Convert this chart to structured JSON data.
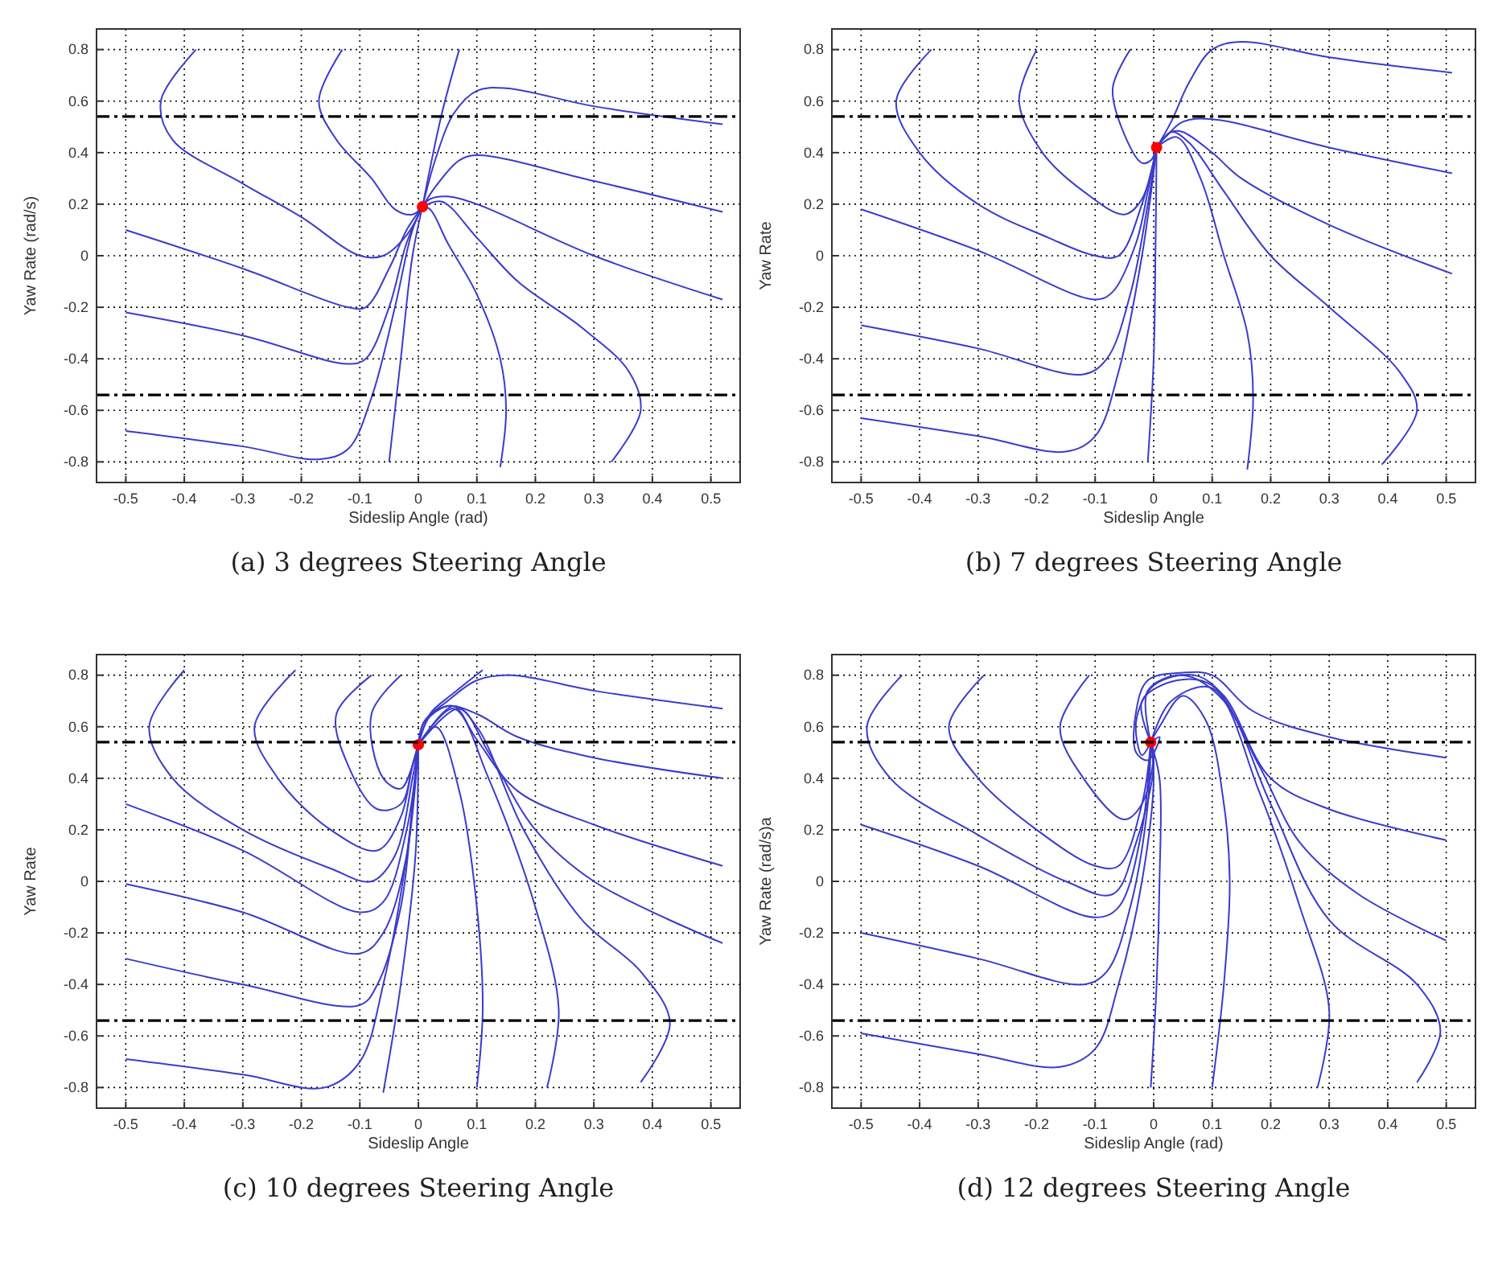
{
  "chart_data": [
    {
      "type": "line",
      "title": "(a) 3 degrees Steering Angle",
      "xlabel": "Sideslip Angle (rad)",
      "ylabel": "Yaw Rate (rad/s)",
      "xlim": [
        -0.55,
        0.55
      ],
      "ylim": [
        -0.88,
        0.88
      ],
      "xticks": [
        -0.5,
        -0.4,
        -0.3,
        -0.2,
        -0.1,
        0,
        0.1,
        0.2,
        0.3,
        0.4,
        0.5
      ],
      "yticks": [
        -0.8,
        -0.6,
        -0.4,
        -0.2,
        0,
        0.2,
        0.4,
        0.6,
        0.8
      ],
      "grid": true,
      "line_style": "solid",
      "ref_lines": [
        {
          "axis": "y",
          "value": 0.54,
          "color": "#000000",
          "line_style": "dashdot"
        },
        {
          "axis": "y",
          "value": -0.54,
          "color": "#000000",
          "line_style": "dashdot"
        }
      ],
      "series": [
        {
          "type": "line",
          "color": "#3b3bcc",
          "x": [
            -0.38,
            -0.44,
            -0.42,
            -0.3,
            -0.2,
            -0.1,
            -0.06,
            -0.02,
            0.007
          ],
          "values": [
            0.8,
            0.6,
            0.45,
            0.28,
            0.15,
            0.0,
            0.0,
            0.08,
            0.19
          ]
        },
        {
          "type": "line",
          "color": "#3b3bcc",
          "x": [
            -0.13,
            -0.17,
            -0.14,
            -0.08,
            -0.04,
            -0.01,
            0.007
          ],
          "values": [
            0.8,
            0.6,
            0.45,
            0.3,
            0.18,
            0.16,
            0.19
          ]
        },
        {
          "type": "line",
          "color": "#3b3bcc",
          "x": [
            0.07,
            0.04,
            0.007
          ],
          "values": [
            0.8,
            0.55,
            0.19
          ]
        },
        {
          "type": "line",
          "color": "#3b3bcc",
          "x": [
            0.52,
            0.3,
            0.15,
            0.1,
            0.06,
            0.03,
            0.007
          ],
          "values": [
            0.51,
            0.58,
            0.65,
            0.64,
            0.55,
            0.38,
            0.19
          ]
        },
        {
          "type": "line",
          "color": "#3b3bcc",
          "x": [
            0.52,
            0.3,
            0.1,
            0.07,
            0.03,
            0.007
          ],
          "values": [
            0.17,
            0.29,
            0.39,
            0.37,
            0.27,
            0.19
          ]
        },
        {
          "type": "line",
          "color": "#3b3bcc",
          "x": [
            0.52,
            0.3,
            0.1,
            0.05,
            0.02,
            0.007
          ],
          "values": [
            -0.17,
            0.0,
            0.2,
            0.23,
            0.22,
            0.19
          ]
        },
        {
          "type": "line",
          "color": "#3b3bcc",
          "x": [
            0.33,
            0.38,
            0.36,
            0.28,
            0.17,
            0.1,
            0.04,
            0.007
          ],
          "values": [
            -0.8,
            -0.6,
            -0.45,
            -0.28,
            -0.1,
            0.07,
            0.21,
            0.19
          ]
        },
        {
          "type": "line",
          "color": "#3b3bcc",
          "x": [
            0.14,
            0.15,
            0.14,
            0.1,
            0.05,
            0.02,
            0.007
          ],
          "values": [
            -0.82,
            -0.6,
            -0.4,
            -0.15,
            0.05,
            0.18,
            0.19
          ]
        },
        {
          "type": "line",
          "color": "#3b3bcc",
          "x": [
            -0.05,
            -0.03,
            -0.01,
            0.007
          ],
          "values": [
            -0.8,
            -0.4,
            0.0,
            0.19
          ]
        },
        {
          "type": "line",
          "color": "#3b3bcc",
          "x": [
            -0.5,
            -0.3,
            -0.17,
            -0.12,
            -0.08,
            -0.04,
            -0.01,
            0.007
          ],
          "values": [
            -0.68,
            -0.74,
            -0.79,
            -0.75,
            -0.55,
            -0.2,
            0.1,
            0.19
          ]
        },
        {
          "type": "line",
          "color": "#3b3bcc",
          "x": [
            -0.5,
            -0.3,
            -0.12,
            -0.09,
            -0.05,
            -0.02,
            0.007
          ],
          "values": [
            -0.22,
            -0.31,
            -0.42,
            -0.4,
            -0.2,
            0.05,
            0.19
          ]
        },
        {
          "type": "line",
          "color": "#3b3bcc",
          "x": [
            -0.5,
            -0.3,
            -0.12,
            -0.09,
            -0.05,
            -0.02,
            0.007
          ],
          "values": [
            0.1,
            -0.05,
            -0.2,
            -0.2,
            -0.05,
            0.1,
            0.19
          ]
        },
        {
          "type": "scatter",
          "marker": "circle",
          "color": "#ff0000",
          "x": [
            0.007
          ],
          "values": [
            0.19
          ]
        }
      ]
    },
    {
      "type": "line",
      "title": "(b) 7 degrees Steering Angle",
      "xlabel": "Sideslip Angle",
      "ylabel": "Yaw Rate",
      "xlim": [
        -0.55,
        0.55
      ],
      "ylim": [
        -0.88,
        0.88
      ],
      "xticks": [
        -0.5,
        -0.4,
        -0.3,
        -0.2,
        -0.1,
        0,
        0.1,
        0.2,
        0.3,
        0.4,
        0.5
      ],
      "yticks": [
        -0.8,
        -0.6,
        -0.4,
        -0.2,
        0,
        0.2,
        0.4,
        0.6,
        0.8
      ],
      "grid": true,
      "line_style": "solid",
      "ref_lines": [
        {
          "axis": "y",
          "value": 0.54,
          "color": "#000000",
          "line_style": "dashdot"
        },
        {
          "axis": "y",
          "value": -0.54,
          "color": "#000000",
          "line_style": "dashdot"
        }
      ],
      "series": [
        {
          "type": "line",
          "color": "#3b3bcc",
          "x": [
            -0.38,
            -0.44,
            -0.4,
            -0.3,
            -0.18,
            -0.1,
            -0.06,
            -0.02,
            0.005
          ],
          "values": [
            0.8,
            0.6,
            0.4,
            0.2,
            0.07,
            0.0,
            0.0,
            0.2,
            0.42
          ]
        },
        {
          "type": "line",
          "color": "#3b3bcc",
          "x": [
            -0.2,
            -0.23,
            -0.19,
            -0.12,
            -0.05,
            -0.02,
            0.005
          ],
          "values": [
            0.8,
            0.6,
            0.4,
            0.25,
            0.16,
            0.22,
            0.42
          ]
        },
        {
          "type": "line",
          "color": "#3b3bcc",
          "x": [
            -0.04,
            -0.07,
            -0.05,
            -0.02,
            -0.005,
            0.005
          ],
          "values": [
            0.8,
            0.65,
            0.47,
            0.36,
            0.37,
            0.42
          ]
        },
        {
          "type": "line",
          "color": "#3b3bcc",
          "x": [
            0.51,
            0.3,
            0.15,
            0.1,
            0.06,
            0.03,
            0.005
          ],
          "values": [
            0.71,
            0.77,
            0.83,
            0.8,
            0.67,
            0.52,
            0.42
          ]
        },
        {
          "type": "line",
          "color": "#3b3bcc",
          "x": [
            0.51,
            0.3,
            0.1,
            0.05,
            0.02,
            0.005
          ],
          "values": [
            0.32,
            0.42,
            0.53,
            0.52,
            0.46,
            0.42
          ]
        },
        {
          "type": "line",
          "color": "#3b3bcc",
          "x": [
            0.51,
            0.3,
            0.15,
            0.1,
            0.05,
            0.03,
            0.005
          ],
          "values": [
            -0.07,
            0.12,
            0.3,
            0.4,
            0.48,
            0.48,
            0.42
          ]
        },
        {
          "type": "line",
          "color": "#3b3bcc",
          "x": [
            0.39,
            0.45,
            0.42,
            0.3,
            0.2,
            0.12,
            0.06,
            0.03,
            0.005
          ],
          "values": [
            -0.81,
            -0.6,
            -0.45,
            -0.2,
            0.0,
            0.25,
            0.44,
            0.48,
            0.42
          ]
        },
        {
          "type": "line",
          "color": "#3b3bcc",
          "x": [
            0.16,
            0.17,
            0.16,
            0.12,
            0.08,
            0.04,
            0.005
          ],
          "values": [
            -0.83,
            -0.55,
            -0.3,
            0.0,
            0.3,
            0.46,
            0.42
          ]
        },
        {
          "type": "line",
          "color": "#3b3bcc",
          "x": [
            -0.01,
            0.0,
            0.003,
            0.005
          ],
          "values": [
            -0.8,
            -0.4,
            0.0,
            0.42
          ]
        },
        {
          "type": "line",
          "color": "#3b3bcc",
          "x": [
            -0.5,
            -0.3,
            -0.15,
            -0.1,
            -0.06,
            -0.02,
            0.005
          ],
          "values": [
            -0.63,
            -0.7,
            -0.76,
            -0.7,
            -0.45,
            0.0,
            0.42
          ]
        },
        {
          "type": "line",
          "color": "#3b3bcc",
          "x": [
            -0.5,
            -0.3,
            -0.12,
            -0.08,
            -0.04,
            -0.01,
            0.005
          ],
          "values": [
            -0.27,
            -0.36,
            -0.46,
            -0.4,
            -0.15,
            0.2,
            0.42
          ]
        },
        {
          "type": "line",
          "color": "#3b3bcc",
          "x": [
            -0.5,
            -0.3,
            -0.1,
            -0.07,
            -0.03,
            -0.01,
            0.005
          ],
          "values": [
            0.18,
            0.02,
            -0.17,
            -0.14,
            0.05,
            0.25,
            0.42
          ]
        },
        {
          "type": "scatter",
          "marker": "circle",
          "color": "#ff0000",
          "x": [
            0.005
          ],
          "values": [
            0.42
          ]
        }
      ]
    },
    {
      "type": "line",
      "title": "(c) 10 degrees Steering Angle",
      "xlabel": "Sideslip Angle",
      "ylabel": "Yaw Rate",
      "xlim": [
        -0.55,
        0.55
      ],
      "ylim": [
        -0.88,
        0.88
      ],
      "xticks": [
        -0.5,
        -0.4,
        -0.3,
        -0.2,
        -0.1,
        0,
        0.1,
        0.2,
        0.3,
        0.4,
        0.5
      ],
      "yticks": [
        -0.8,
        -0.6,
        -0.4,
        -0.2,
        0,
        0.2,
        0.4,
        0.6,
        0.8
      ],
      "grid": true,
      "line_style": "solid",
      "ref_lines": [
        {
          "axis": "y",
          "value": 0.54,
          "color": "#000000",
          "line_style": "dashdot"
        },
        {
          "axis": "y",
          "value": -0.54,
          "color": "#000000",
          "line_style": "dashdot"
        }
      ],
      "series": [
        {
          "type": "line",
          "color": "#3b3bcc",
          "x": [
            -0.4,
            -0.46,
            -0.42,
            -0.3,
            -0.15,
            -0.08,
            -0.04,
            -0.01,
            0.0
          ],
          "values": [
            0.82,
            0.6,
            0.4,
            0.2,
            0.05,
            0.0,
            0.1,
            0.4,
            0.53
          ]
        },
        {
          "type": "line",
          "color": "#3b3bcc",
          "x": [
            -0.21,
            -0.28,
            -0.24,
            -0.15,
            -0.07,
            -0.03,
            -0.01,
            0.0
          ],
          "values": [
            0.82,
            0.6,
            0.4,
            0.2,
            0.12,
            0.25,
            0.45,
            0.53
          ]
        },
        {
          "type": "line",
          "color": "#3b3bcc",
          "x": [
            -0.08,
            -0.14,
            -0.12,
            -0.07,
            -0.03,
            -0.01,
            0.0
          ],
          "values": [
            0.8,
            0.65,
            0.45,
            0.28,
            0.3,
            0.45,
            0.53
          ]
        },
        {
          "type": "line",
          "color": "#3b3bcc",
          "x": [
            -0.03,
            -0.08,
            -0.06,
            -0.03,
            -0.01,
            0.0
          ],
          "values": [
            0.8,
            0.65,
            0.4,
            0.36,
            0.45,
            0.53
          ]
        },
        {
          "type": "line",
          "color": "#3b3bcc",
          "x": [
            0.11,
            0.06,
            0.02,
            0.0
          ],
          "values": [
            0.82,
            0.73,
            0.65,
            0.53
          ]
        },
        {
          "type": "line",
          "color": "#3b3bcc",
          "x": [
            0.52,
            0.3,
            0.16,
            0.1,
            0.05,
            0.01,
            0.0
          ],
          "values": [
            0.67,
            0.74,
            0.8,
            0.78,
            0.7,
            0.62,
            0.53
          ]
        },
        {
          "type": "line",
          "color": "#3b3bcc",
          "x": [
            0.52,
            0.3,
            0.17,
            0.1,
            0.05,
            0.01,
            0.0
          ],
          "values": [
            0.4,
            0.48,
            0.56,
            0.65,
            0.68,
            0.62,
            0.53
          ]
        },
        {
          "type": "line",
          "color": "#3b3bcc",
          "x": [
            0.52,
            0.3,
            0.17,
            0.1,
            0.06,
            0.02,
            0.0
          ],
          "values": [
            0.06,
            0.22,
            0.35,
            0.55,
            0.68,
            0.64,
            0.53
          ]
        },
        {
          "type": "line",
          "color": "#3b3bcc",
          "x": [
            0.52,
            0.3,
            0.2,
            0.12,
            0.07,
            0.0
          ],
          "values": [
            -0.24,
            0.0,
            0.2,
            0.5,
            0.67,
            0.53
          ]
        },
        {
          "type": "line",
          "color": "#3b3bcc",
          "x": [
            0.38,
            0.43,
            0.38,
            0.28,
            0.18,
            0.1,
            0.06,
            0.0
          ],
          "values": [
            -0.78,
            -0.55,
            -0.35,
            -0.15,
            0.2,
            0.6,
            0.68,
            0.53
          ]
        },
        {
          "type": "line",
          "color": "#3b3bcc",
          "x": [
            0.22,
            0.24,
            0.2,
            0.12,
            0.06,
            0.0
          ],
          "values": [
            -0.8,
            -0.5,
            -0.1,
            0.4,
            0.67,
            0.53
          ]
        },
        {
          "type": "line",
          "color": "#3b3bcc",
          "x": [
            0.1,
            0.11,
            0.1,
            0.07,
            0.03,
            0.0
          ],
          "values": [
            -0.8,
            -0.5,
            -0.1,
            0.35,
            0.6,
            0.53
          ]
        },
        {
          "type": "line",
          "color": "#3b3bcc",
          "x": [
            -0.06,
            -0.03,
            -0.005,
            0.0
          ],
          "values": [
            -0.82,
            -0.4,
            0.1,
            0.53
          ]
        },
        {
          "type": "line",
          "color": "#3b3bcc",
          "x": [
            -0.5,
            -0.3,
            -0.16,
            -0.1,
            -0.06,
            -0.02,
            0.0
          ],
          "values": [
            -0.69,
            -0.75,
            -0.8,
            -0.7,
            -0.4,
            0.1,
            0.53
          ]
        },
        {
          "type": "line",
          "color": "#3b3bcc",
          "x": [
            -0.5,
            -0.3,
            -0.1,
            -0.07,
            -0.03,
            -0.01,
            0.0
          ],
          "values": [
            -0.3,
            -0.4,
            -0.48,
            -0.4,
            -0.1,
            0.3,
            0.53
          ]
        },
        {
          "type": "line",
          "color": "#3b3bcc",
          "x": [
            -0.5,
            -0.3,
            -0.1,
            -0.06,
            -0.02,
            0.0
          ],
          "values": [
            -0.01,
            -0.12,
            -0.28,
            -0.2,
            0.1,
            0.53
          ]
        },
        {
          "type": "line",
          "color": "#3b3bcc",
          "x": [
            -0.5,
            -0.3,
            -0.1,
            -0.06,
            -0.02,
            0.0
          ],
          "values": [
            0.3,
            0.12,
            -0.12,
            -0.08,
            0.2,
            0.53
          ]
        },
        {
          "type": "scatter",
          "marker": "circle",
          "color": "#ff0000",
          "x": [
            0.0
          ],
          "values": [
            0.53
          ]
        }
      ]
    },
    {
      "type": "line",
      "title": "(d) 12 degrees Steering Angle",
      "xlabel": "Sideslip Angle (rad)",
      "ylabel": "Yaw Rate (rad/s)a",
      "xlim": [
        -0.55,
        0.55
      ],
      "ylim": [
        -0.88,
        0.88
      ],
      "xticks": [
        -0.5,
        -0.4,
        -0.3,
        -0.2,
        -0.1,
        0,
        0.1,
        0.2,
        0.3,
        0.4,
        0.5
      ],
      "yticks": [
        -0.8,
        -0.6,
        -0.4,
        -0.2,
        0,
        0.2,
        0.4,
        0.6,
        0.8
      ],
      "grid": true,
      "line_style": "solid",
      "ref_lines": [
        {
          "axis": "y",
          "value": 0.54,
          "color": "#000000",
          "line_style": "dashdot"
        },
        {
          "axis": "y",
          "value": -0.54,
          "color": "#000000",
          "line_style": "dashdot"
        }
      ],
      "series": [
        {
          "type": "line",
          "color": "#3b3bcc",
          "x": [
            -0.43,
            -0.49,
            -0.45,
            -0.3,
            -0.15,
            -0.07,
            -0.03,
            0.0,
            -0.005
          ],
          "values": [
            0.8,
            0.6,
            0.4,
            0.18,
            0.0,
            -0.05,
            0.15,
            0.45,
            0.54
          ]
        },
        {
          "type": "line",
          "color": "#3b3bcc",
          "x": [
            -0.29,
            -0.35,
            -0.3,
            -0.2,
            -0.1,
            -0.06,
            -0.02,
            -0.005
          ],
          "values": [
            0.8,
            0.6,
            0.4,
            0.2,
            0.06,
            0.06,
            0.3,
            0.54
          ]
        },
        {
          "type": "line",
          "color": "#3b3bcc",
          "x": [
            -0.11,
            -0.16,
            -0.12,
            -0.05,
            -0.02,
            0.0,
            -0.005
          ],
          "values": [
            0.8,
            0.6,
            0.4,
            0.24,
            0.3,
            0.5,
            0.54
          ]
        },
        {
          "type": "line",
          "color": "#3b3bcc",
          "x": [
            0.5,
            0.3,
            0.17,
            0.1,
            0.05,
            -0.01,
            -0.03,
            -0.03,
            -0.01,
            0.01,
            -0.005
          ],
          "values": [
            0.48,
            0.56,
            0.66,
            0.8,
            0.81,
            0.78,
            0.66,
            0.5,
            0.47,
            0.56,
            0.54
          ]
        },
        {
          "type": "line",
          "color": "#3b3bcc",
          "x": [
            0.5,
            0.3,
            0.2,
            0.12,
            0.07,
            0.0,
            -0.03,
            -0.02,
            -0.005
          ],
          "values": [
            0.16,
            0.28,
            0.4,
            0.72,
            0.8,
            0.76,
            0.62,
            0.49,
            0.54
          ]
        },
        {
          "type": "line",
          "color": "#3b3bcc",
          "x": [
            0.5,
            0.35,
            0.25,
            0.18,
            0.1,
            0.04,
            -0.02,
            -0.005
          ],
          "values": [
            -0.23,
            -0.05,
            0.15,
            0.45,
            0.76,
            0.78,
            0.7,
            0.54
          ]
        },
        {
          "type": "line",
          "color": "#3b3bcc",
          "x": [
            0.45,
            0.49,
            0.45,
            0.3,
            0.2,
            0.12,
            0.05,
            -0.01,
            -0.005
          ],
          "values": [
            -0.78,
            -0.58,
            -0.4,
            -0.15,
            0.3,
            0.7,
            0.8,
            0.74,
            0.54
          ]
        },
        {
          "type": "line",
          "color": "#3b3bcc",
          "x": [
            0.28,
            0.3,
            0.25,
            0.18,
            0.1,
            0.03,
            -0.005
          ],
          "values": [
            -0.8,
            -0.5,
            -0.1,
            0.35,
            0.75,
            0.7,
            0.54
          ]
        },
        {
          "type": "line",
          "color": "#3b3bcc",
          "x": [
            0.1,
            0.12,
            0.13,
            0.12,
            0.09,
            0.05,
            0.01,
            -0.005
          ],
          "values": [
            -0.8,
            -0.4,
            0.0,
            0.3,
            0.62,
            0.72,
            0.6,
            0.54
          ]
        },
        {
          "type": "line",
          "color": "#3b3bcc",
          "x": [
            -0.005,
            0.005,
            0.01,
            0.01,
            -0.005
          ],
          "values": [
            -0.8,
            -0.4,
            0.0,
            0.4,
            0.54
          ]
        },
        {
          "type": "line",
          "color": "#3b3bcc",
          "x": [
            -0.5,
            -0.3,
            -0.16,
            -0.1,
            -0.06,
            -0.02,
            0.0,
            -0.005
          ],
          "values": [
            -0.59,
            -0.67,
            -0.72,
            -0.65,
            -0.4,
            0.0,
            0.4,
            0.54
          ]
        },
        {
          "type": "line",
          "color": "#3b3bcc",
          "x": [
            -0.5,
            -0.3,
            -0.12,
            -0.08,
            -0.04,
            -0.01,
            -0.005
          ],
          "values": [
            -0.2,
            -0.3,
            -0.4,
            -0.35,
            -0.1,
            0.3,
            0.54
          ]
        },
        {
          "type": "line",
          "color": "#3b3bcc",
          "x": [
            -0.5,
            -0.3,
            -0.1,
            -0.06,
            -0.02,
            -0.005
          ],
          "values": [
            0.22,
            0.06,
            -0.14,
            -0.1,
            0.2,
            0.54
          ]
        },
        {
          "type": "scatter",
          "marker": "circle",
          "color": "#ff0000",
          "x": [
            -0.005
          ],
          "values": [
            0.54
          ]
        }
      ]
    }
  ]
}
